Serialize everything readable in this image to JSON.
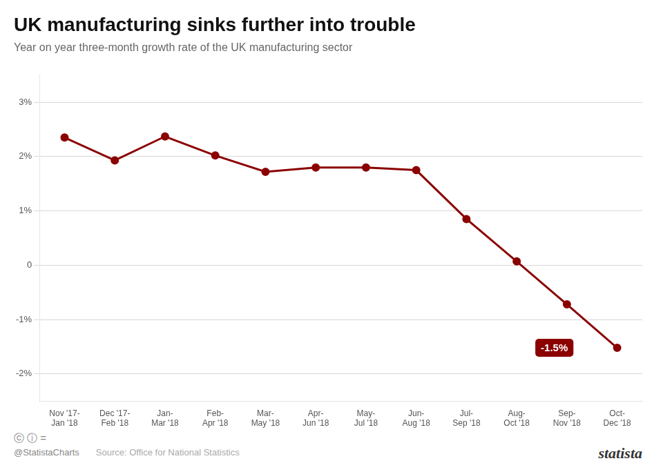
{
  "chart_data": {
    "type": "line",
    "title": "UK manufacturing sinks further into trouble",
    "subtitle": "Year on year three-month growth rate of the UK manufacturing sector",
    "categories": [
      "Nov '17-\nJan '18",
      "Dec '17-\nFeb '18",
      "Jan-\nMar '18",
      "Feb-\nApr '18",
      "Mar-\nMay '18",
      "Apr-\nJun '18",
      "May-\nJul '18",
      "Jun-\nAug '18",
      "Jul-\nSep '18",
      "Aug-\nOct '18",
      "Sep-\nNov '18",
      "Oct-\nDec '18"
    ],
    "values": [
      2.35,
      1.93,
      2.37,
      2.02,
      1.72,
      1.8,
      1.8,
      1.75,
      0.85,
      0.07,
      -0.72,
      -1.52
    ],
    "color": "#8B0000",
    "marker": "circle",
    "ylim": [
      -2.5,
      3.5
    ],
    "yticks": [
      {
        "value": -2,
        "label": "-2%"
      },
      {
        "value": -1,
        "label": "-1%"
      },
      0,
      {
        "value": 1,
        "label": "1%"
      },
      {
        "value": 2,
        "label": "2%"
      },
      {
        "value": 3,
        "label": "3%"
      }
    ],
    "grid": true,
    "annotations": [
      {
        "text": "-1.5%",
        "at": "Oct-\nDec '18"
      }
    ],
    "license": "ⓒ ⓘ =",
    "credit": "@StatistaCharts",
    "source": "Source: Office for National Statistics",
    "logo": "statista"
  }
}
